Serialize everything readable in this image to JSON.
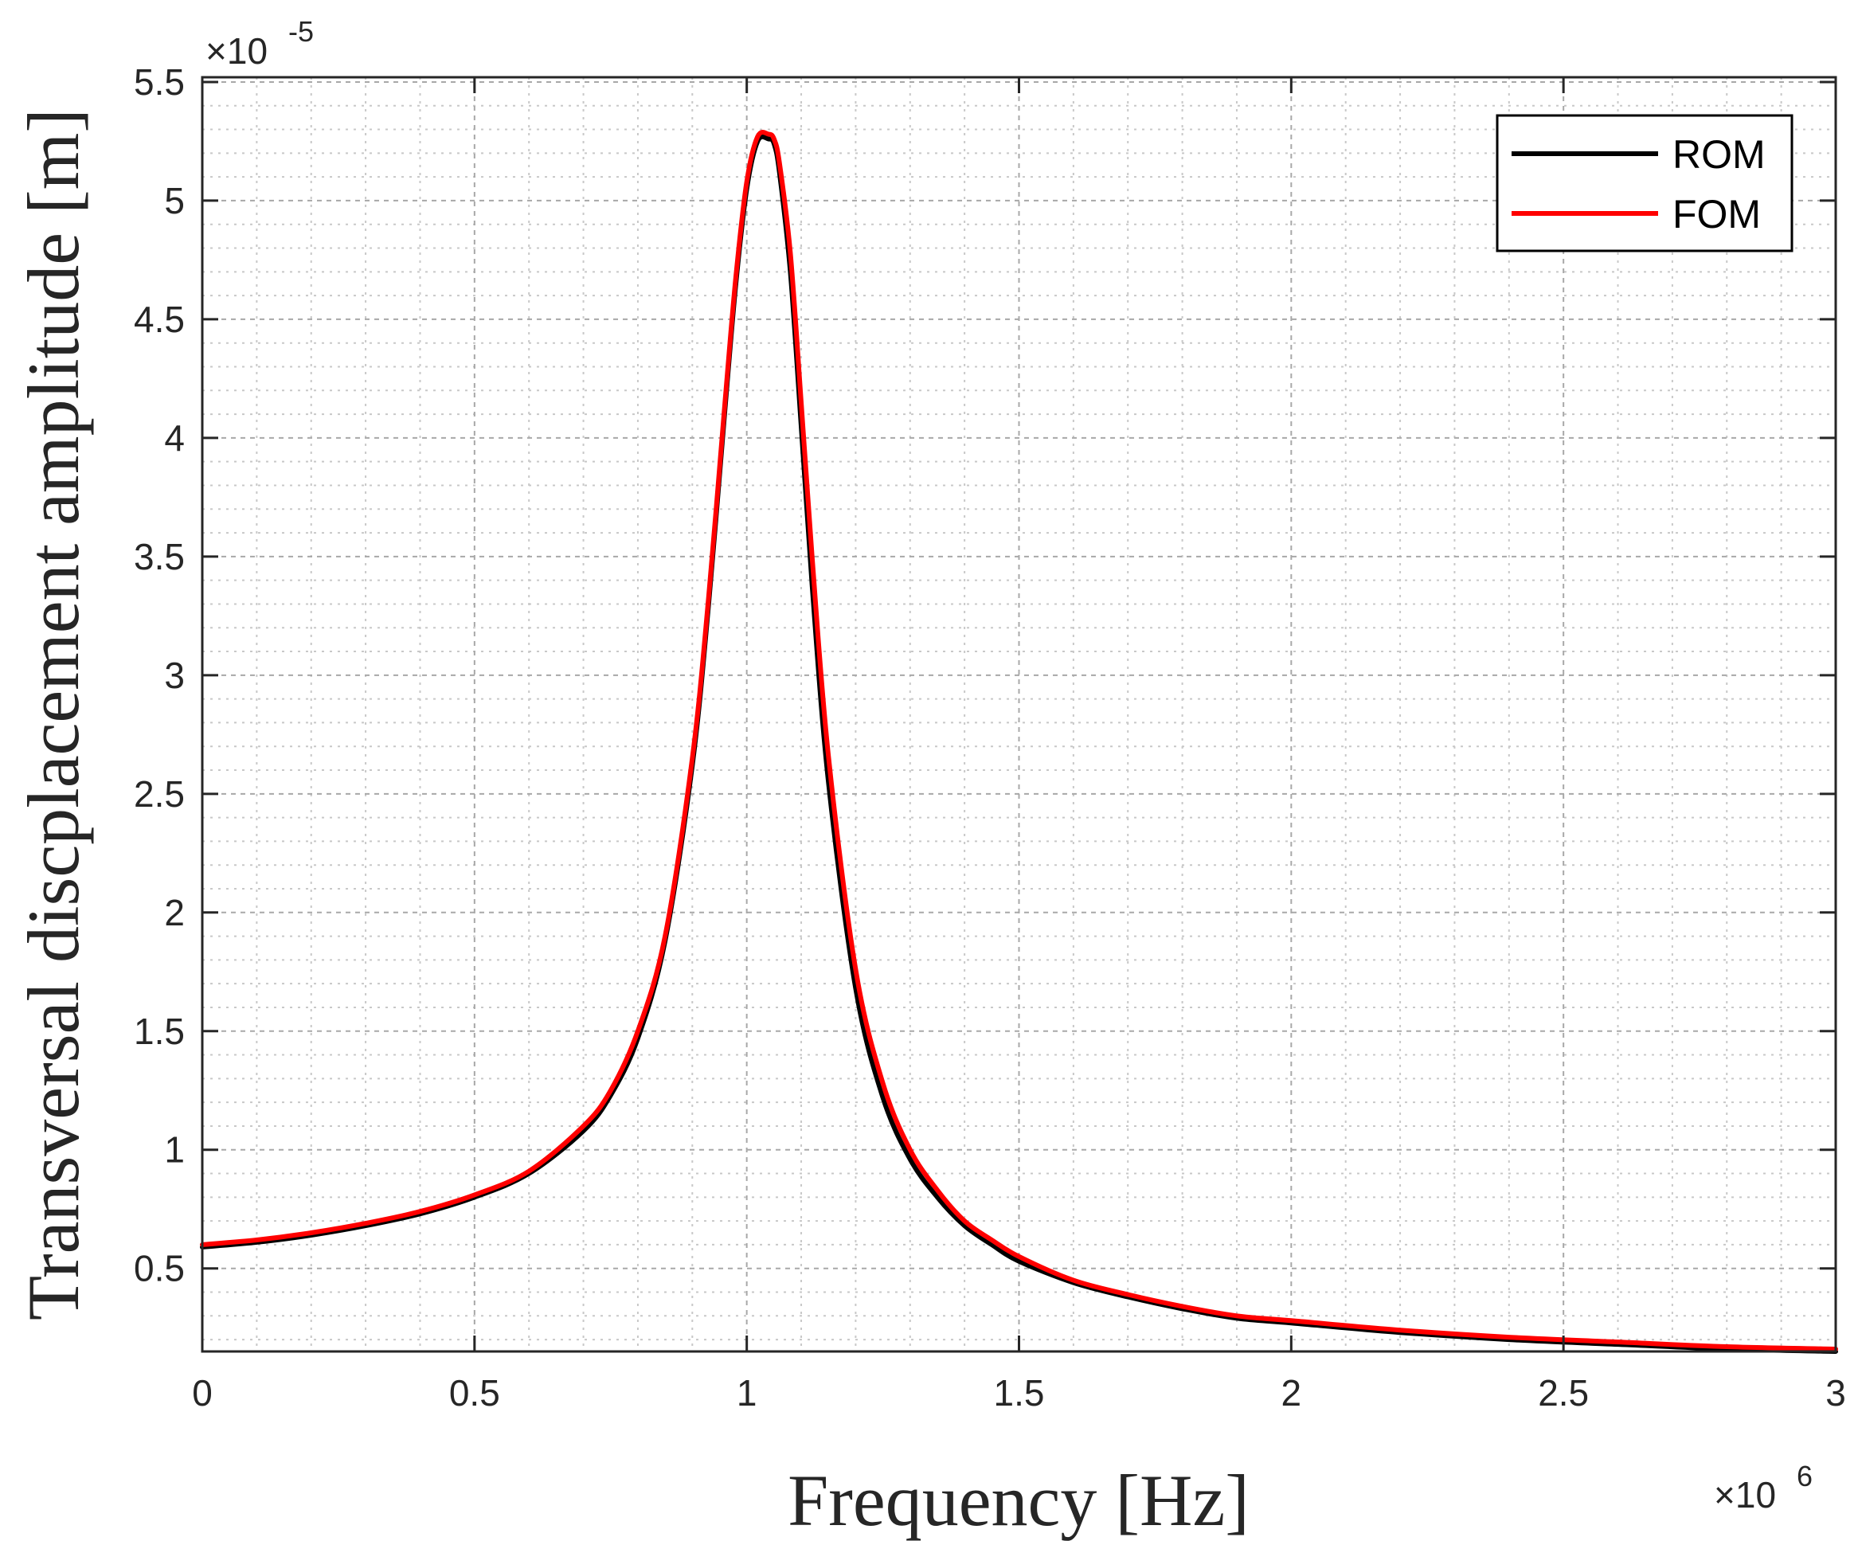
{
  "chart_data": {
    "type": "line",
    "title": "",
    "xlabel": "Frequency [Hz]",
    "ylabel": "Transversal discplacement amplitude [m]",
    "x_multiplier_label": {
      "base": "×10",
      "exp": "6"
    },
    "y_multiplier_label": {
      "base": "×10",
      "exp": "-5"
    },
    "xlim": [
      0,
      3
    ],
    "ylim": [
      0.15,
      5.52
    ],
    "x_ticks": [
      0,
      0.5,
      1,
      1.5,
      2,
      2.5,
      3
    ],
    "x_tick_labels": [
      "0",
      "0.5",
      "1",
      "1.5",
      "2",
      "2.5",
      "3"
    ],
    "y_ticks": [
      0.5,
      1,
      1.5,
      2,
      2.5,
      3,
      3.5,
      4,
      4.5,
      5,
      5.5
    ],
    "y_tick_labels": [
      "0.5",
      "1",
      "1.5",
      "2",
      "2.5",
      "3",
      "3.5",
      "4",
      "4.5",
      "5",
      "5.5"
    ],
    "grid": true,
    "minor_grid": true,
    "legend_position": "top-right",
    "series": [
      {
        "name": "ROM",
        "color": "#000000",
        "x": [
          0,
          0.1,
          0.2,
          0.3,
          0.4,
          0.5,
          0.6,
          0.7,
          0.75,
          0.8,
          0.85,
          0.9,
          0.93,
          0.96,
          0.98,
          1.0,
          1.02,
          1.04,
          1.05,
          1.06,
          1.08,
          1.1,
          1.12,
          1.15,
          1.2,
          1.25,
          1.3,
          1.35,
          1.4,
          1.45,
          1.5,
          1.6,
          1.7,
          1.8,
          1.9,
          2.0,
          2.2,
          2.4,
          2.6,
          2.8,
          3.0
        ],
        "y": [
          0.59,
          0.61,
          0.64,
          0.68,
          0.73,
          0.8,
          0.9,
          1.08,
          1.23,
          1.47,
          1.88,
          2.62,
          3.3,
          4.12,
          4.65,
          5.05,
          5.25,
          5.26,
          5.24,
          5.12,
          4.7,
          4.05,
          3.38,
          2.55,
          1.68,
          1.22,
          0.96,
          0.8,
          0.68,
          0.6,
          0.53,
          0.44,
          0.38,
          0.33,
          0.29,
          0.27,
          0.23,
          0.2,
          0.18,
          0.16,
          0.15
        ]
      },
      {
        "name": "FOM",
        "color": "#ff0000",
        "x": [
          0,
          0.1,
          0.2,
          0.3,
          0.4,
          0.5,
          0.6,
          0.7,
          0.75,
          0.8,
          0.85,
          0.9,
          0.93,
          0.96,
          0.98,
          1.0,
          1.02,
          1.04,
          1.05,
          1.06,
          1.08,
          1.1,
          1.12,
          1.15,
          1.2,
          1.25,
          1.3,
          1.35,
          1.4,
          1.45,
          1.5,
          1.6,
          1.7,
          1.8,
          1.9,
          2.0,
          2.2,
          2.4,
          2.6,
          2.8,
          3.0
        ],
        "y": [
          0.6,
          0.62,
          0.65,
          0.69,
          0.74,
          0.81,
          0.91,
          1.1,
          1.25,
          1.5,
          1.9,
          2.65,
          3.33,
          4.15,
          4.68,
          5.08,
          5.27,
          5.28,
          5.26,
          5.16,
          4.78,
          4.15,
          3.5,
          2.66,
          1.76,
          1.28,
          1.0,
          0.83,
          0.7,
          0.62,
          0.55,
          0.45,
          0.39,
          0.34,
          0.3,
          0.28,
          0.24,
          0.21,
          0.19,
          0.17,
          0.16
        ]
      }
    ]
  }
}
